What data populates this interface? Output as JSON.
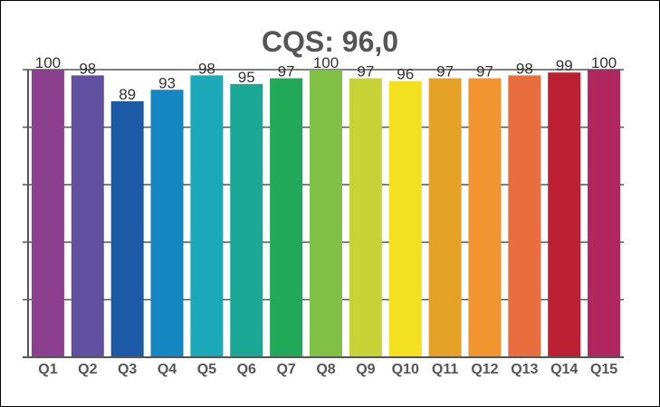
{
  "chart_data": {
    "type": "bar",
    "title": "CQS: 96,0",
    "categories": [
      "Q1",
      "Q2",
      "Q3",
      "Q4",
      "Q5",
      "Q6",
      "Q7",
      "Q8",
      "Q9",
      "Q10",
      "Q11",
      "Q12",
      "Q13",
      "Q14",
      "Q15"
    ],
    "values": [
      100,
      98,
      89,
      93,
      98,
      95,
      97,
      100,
      97,
      96,
      97,
      97,
      98,
      99,
      100
    ],
    "value_labels": [
      "100",
      "98",
      "89",
      "93",
      "98",
      "95",
      "97",
      "100",
      "97",
      "96",
      "97",
      "97",
      "98",
      "99",
      "100"
    ],
    "ylim": [
      0,
      100
    ],
    "xlabel": "",
    "ylabel": "",
    "grid": true,
    "y_tick_labels_shown": false,
    "colors": [
      "#8b3f8e",
      "#61509f",
      "#1c5aa8",
      "#1486c1",
      "#1ba8b8",
      "#1aa796",
      "#21a858",
      "#7fc045",
      "#c7d336",
      "#f3e120",
      "#e6a127",
      "#f29430",
      "#ea6e3d",
      "#bd2032",
      "#b0275f"
    ]
  }
}
